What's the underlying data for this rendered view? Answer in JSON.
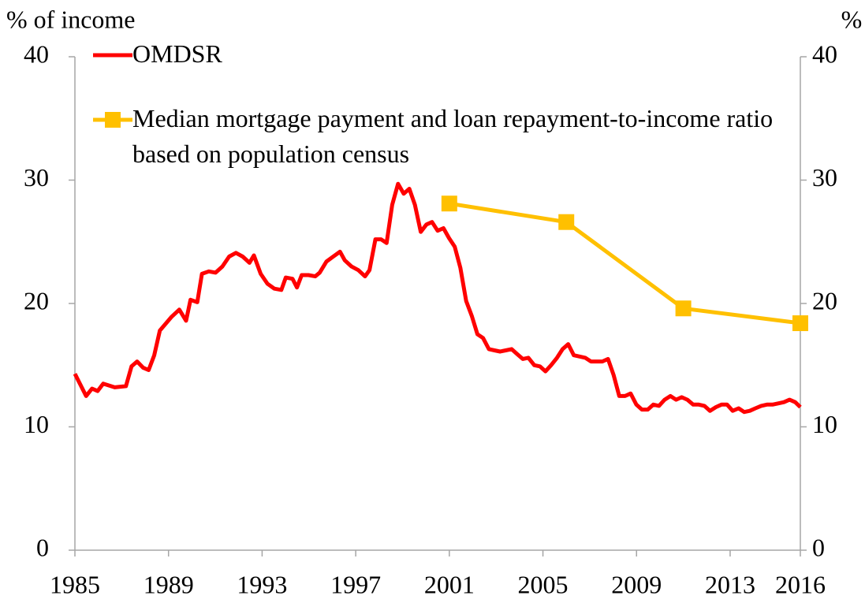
{
  "chart_data": {
    "type": "line",
    "ylabel": "% of income",
    "y2label": "%",
    "xlim": [
      1985,
      2016
    ],
    "xticks": [
      1985,
      1989,
      1993,
      1997,
      2001,
      2005,
      2009,
      2013,
      2016
    ],
    "ylim": [
      0,
      40
    ],
    "yticks": [
      0,
      10,
      20,
      30,
      40
    ],
    "y2lim": [
      0,
      40
    ],
    "y2ticks": [
      0,
      10,
      20,
      30,
      40
    ],
    "legend": "top-left",
    "series": [
      {
        "name": "OMDSR",
        "color": "#ff0000",
        "marker": "none",
        "x": [
          1985.0,
          1985.48,
          1985.73,
          1985.97,
          1986.21,
          1986.7,
          1987.18,
          1987.42,
          1987.66,
          1987.91,
          1988.15,
          1988.39,
          1988.63,
          1989.12,
          1989.46,
          1989.75,
          1989.94,
          1990.23,
          1990.43,
          1990.72,
          1991.01,
          1991.3,
          1991.59,
          1991.88,
          1992.17,
          1992.46,
          1992.65,
          1992.94,
          1993.23,
          1993.52,
          1993.82,
          1994.01,
          1994.3,
          1994.49,
          1994.69,
          1994.98,
          1995.27,
          1995.46,
          1995.75,
          1996.04,
          1996.33,
          1996.53,
          1996.82,
          1997.11,
          1997.4,
          1997.59,
          1997.84,
          1998.08,
          1998.32,
          1998.56,
          1998.81,
          1999.05,
          1999.29,
          1999.53,
          1999.78,
          2000.02,
          2000.26,
          2000.5,
          2000.75,
          2000.99,
          2001.23,
          2001.47,
          2001.72,
          2001.96,
          2002.2,
          2002.44,
          2002.69,
          2002.93,
          2003.17,
          2003.41,
          2003.66,
          2003.9,
          2004.14,
          2004.38,
          2004.63,
          2004.87,
          2005.11,
          2005.35,
          2005.6,
          2005.84,
          2006.08,
          2006.32,
          2006.57,
          2006.81,
          2007.05,
          2007.29,
          2007.54,
          2007.78,
          2008.02,
          2008.26,
          2008.51,
          2008.75,
          2008.99,
          2009.23,
          2009.48,
          2009.72,
          2009.96,
          2010.2,
          2010.45,
          2010.69,
          2010.93,
          2011.17,
          2011.42,
          2011.66,
          2011.9,
          2012.14,
          2012.39,
          2012.63,
          2012.87,
          2013.11,
          2013.36,
          2013.6,
          2013.84,
          2014.08,
          2014.33,
          2014.57,
          2014.81,
          2015.05,
          2015.3,
          2015.54,
          2015.78,
          2016.0
        ],
        "values": [
          14.3,
          12.5,
          13.1,
          12.9,
          13.5,
          13.2,
          13.3,
          14.9,
          15.3,
          14.8,
          14.6,
          15.8,
          17.8,
          18.9,
          19.5,
          18.6,
          20.3,
          20.1,
          22.4,
          22.6,
          22.5,
          23.0,
          23.8,
          24.1,
          23.8,
          23.3,
          23.9,
          22.4,
          21.6,
          21.2,
          21.1,
          22.1,
          22.0,
          21.3,
          22.3,
          22.3,
          22.2,
          22.5,
          23.4,
          23.8,
          24.2,
          23.5,
          23.0,
          22.7,
          22.2,
          22.7,
          25.2,
          25.2,
          24.9,
          28.0,
          29.7,
          28.9,
          29.3,
          28.0,
          25.8,
          26.4,
          26.6,
          25.9,
          26.1,
          25.3,
          24.6,
          22.9,
          20.2,
          19.0,
          17.5,
          17.2,
          16.3,
          16.2,
          16.1,
          16.2,
          16.3,
          15.9,
          15.5,
          15.6,
          15.0,
          14.9,
          14.5,
          15.0,
          15.6,
          16.3,
          16.7,
          15.8,
          15.7,
          15.6,
          15.3,
          15.3,
          15.3,
          15.5,
          14.2,
          12.5,
          12.5,
          12.7,
          11.8,
          11.4,
          11.4,
          11.8,
          11.7,
          12.2,
          12.5,
          12.2,
          12.4,
          12.2,
          11.8,
          11.8,
          11.7,
          11.3,
          11.6,
          11.8,
          11.8,
          11.3,
          11.5,
          11.2,
          11.3,
          11.5,
          11.7,
          11.8,
          11.8,
          11.9,
          12.0,
          12.2,
          12.0,
          11.6
        ]
      },
      {
        "name": "Median mortgage payment and loan repayment-to-income ratio based on population census",
        "color": "#ffc000",
        "marker": "square",
        "axis": "y2",
        "x": [
          2001,
          2006,
          2011,
          2016
        ],
        "values": [
          28.1,
          26.6,
          19.6,
          18.4
        ]
      }
    ]
  }
}
